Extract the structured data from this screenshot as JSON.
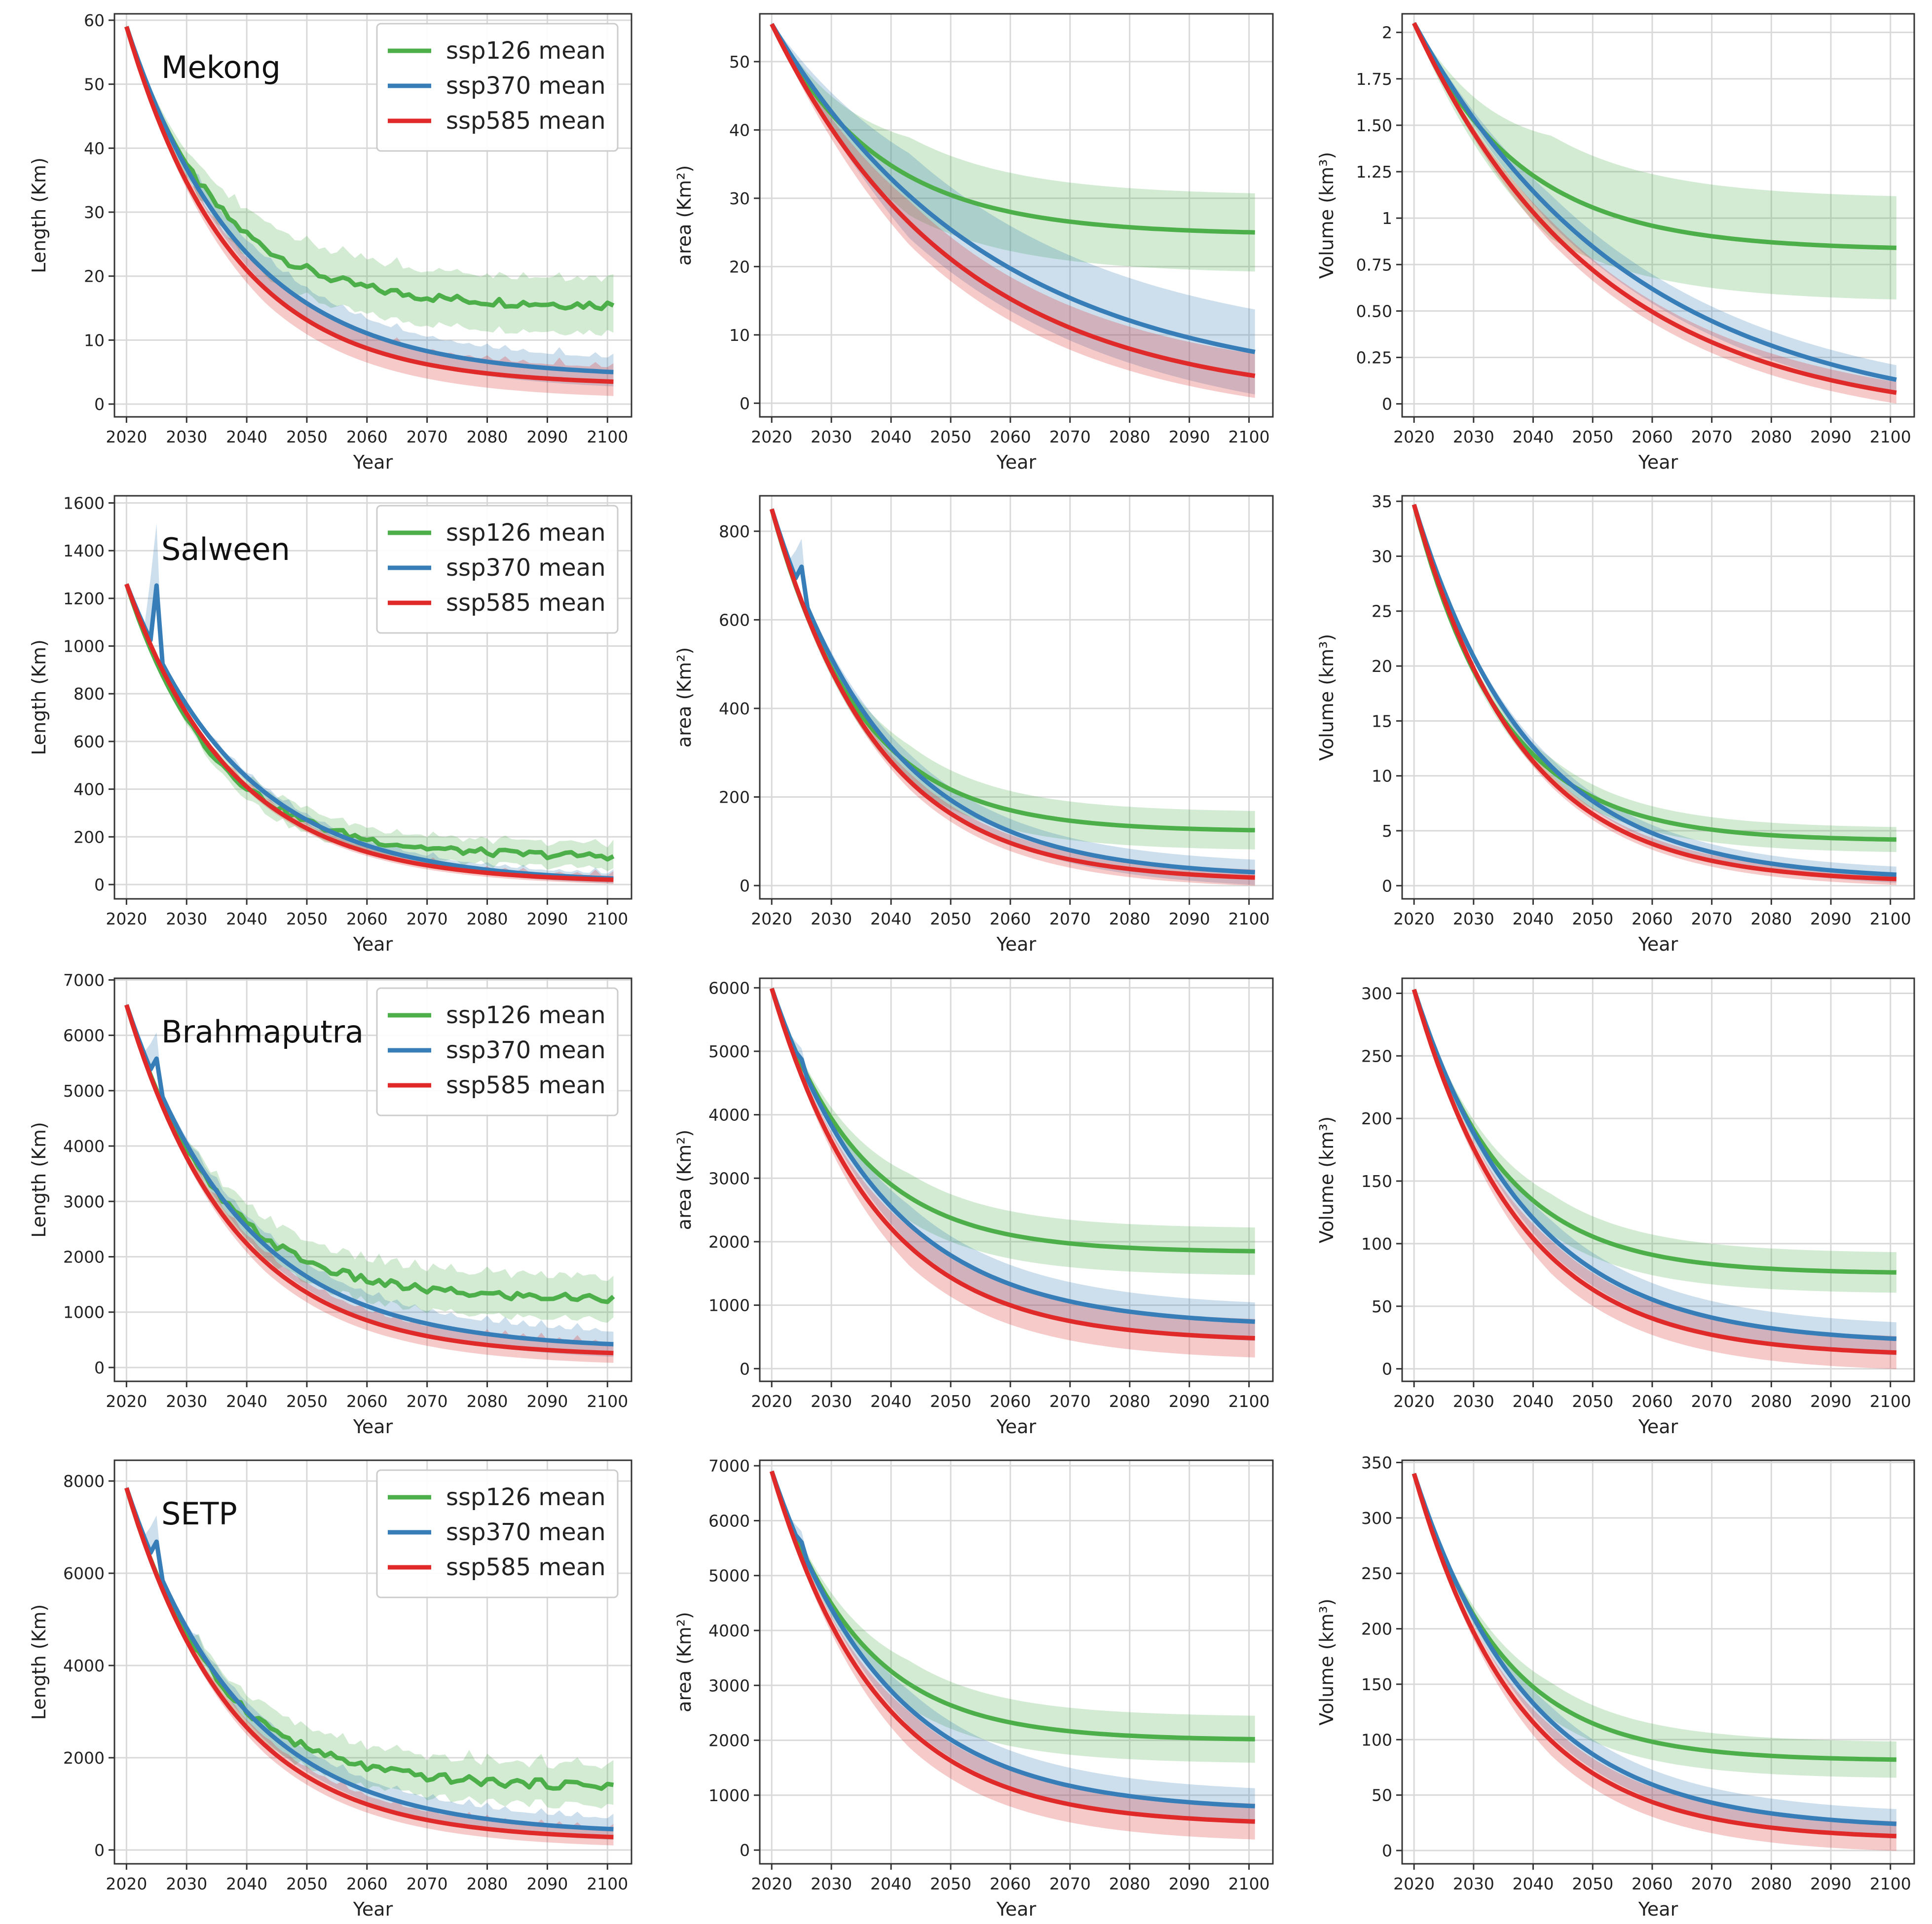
{
  "chart_data": {
    "type": "line",
    "layout": "4 rows x 3 columns of subplots (rows = basins, columns = length, area, volume)",
    "xlabel": "Year",
    "xlim": [
      2018,
      2104
    ],
    "xticks": [
      2020,
      2030,
      2040,
      2050,
      2060,
      2070,
      2080,
      2090,
      2100
    ],
    "legend": {
      "location": "top-right of left-column panels",
      "entries": [
        {
          "label": "ssp126 mean",
          "color": "#4daf4a"
        },
        {
          "label": "ssp370 mean",
          "color": "#377eb8"
        },
        {
          "label": "ssp585 mean",
          "color": "#e02a2a"
        }
      ]
    },
    "panels": [
      {
        "basin": "Mekong",
        "quantity": "length",
        "ylabel": "Length (Km)",
        "ylim": [
          -2,
          61
        ],
        "yticks": [
          0,
          10,
          20,
          30,
          40,
          50,
          60
        ],
        "start": 59,
        "spike": 0,
        "series": [
          {
            "name": "ssp126 mean",
            "end": 15.5,
            "band_end": 4
          },
          {
            "name": "ssp370 mean",
            "end": 5,
            "band_end": 2
          },
          {
            "name": "ssp585 mean",
            "end": 3.5,
            "band_end": 2
          }
        ]
      },
      {
        "basin": "Mekong",
        "quantity": "area",
        "ylabel": "area (Km²)",
        "ylim": [
          -2,
          57
        ],
        "yticks": [
          0,
          10,
          20,
          30,
          40,
          50
        ],
        "start": 55.5,
        "spike": 0,
        "series": [
          {
            "name": "ssp126 mean",
            "end": 25,
            "band_end": 5.5
          },
          {
            "name": "ssp370 mean",
            "end": 7.5,
            "band_end": 6
          },
          {
            "name": "ssp585 mean",
            "end": 4,
            "band_end": 3
          }
        ]
      },
      {
        "basin": "Mekong",
        "quantity": "volume",
        "ylabel": "Volume (km³)",
        "ylim": [
          -0.07,
          2.1
        ],
        "yticks": [
          0.0,
          0.25,
          0.5,
          0.75,
          1.0,
          1.25,
          1.5,
          1.75,
          2.0
        ],
        "start": 2.05,
        "spike": 0,
        "series": [
          {
            "name": "ssp126 mean",
            "end": 0.84,
            "band_end": 0.27
          },
          {
            "name": "ssp370 mean",
            "end": 0.13,
            "band_end": 0.07
          },
          {
            "name": "ssp585 mean",
            "end": 0.06,
            "band_end": 0.05
          }
        ]
      },
      {
        "basin": "Salween",
        "quantity": "length",
        "ylabel": "Length (Km)",
        "ylim": [
          -60,
          1630
        ],
        "yticks": [
          0,
          200,
          400,
          600,
          800,
          1000,
          1200,
          1400,
          1600
        ],
        "start": 1260,
        "spike": 280,
        "series": [
          {
            "name": "ssp126 mean",
            "end": 120,
            "band_end": 45
          },
          {
            "name": "ssp370 mean",
            "end": 25,
            "band_end": 15
          },
          {
            "name": "ssp585 mean",
            "end": 20,
            "band_end": 12
          }
        ]
      },
      {
        "basin": "Salween",
        "quantity": "area",
        "ylabel": "area (Km²)",
        "ylim": [
          -30,
          880
        ],
        "yticks": [
          0,
          200,
          400,
          600,
          800
        ],
        "start": 850,
        "spike": 60,
        "series": [
          {
            "name": "ssp126 mean",
            "end": 125,
            "band_end": 40
          },
          {
            "name": "ssp370 mean",
            "end": 30,
            "band_end": 25
          },
          {
            "name": "ssp585 mean",
            "end": 18,
            "band_end": 15
          }
        ]
      },
      {
        "basin": "Salween",
        "quantity": "volume",
        "ylabel": "Volume (km³)",
        "ylim": [
          -1.2,
          35.5
        ],
        "yticks": [
          0,
          5,
          10,
          15,
          20,
          25,
          30,
          35
        ],
        "start": 34.7,
        "spike": 0,
        "series": [
          {
            "name": "ssp126 mean",
            "end": 4.2,
            "band_end": 1.0
          },
          {
            "name": "ssp370 mean",
            "end": 1.0,
            "band_end": 0.6
          },
          {
            "name": "ssp585 mean",
            "end": 0.6,
            "band_end": 0.4
          }
        ]
      },
      {
        "basin": "Brahmaputra",
        "quantity": "length",
        "ylabel": "Length (Km)",
        "ylim": [
          -250,
          7030
        ],
        "yticks": [
          0,
          1000,
          2000,
          3000,
          4000,
          5000,
          6000,
          7000
        ],
        "start": 6550,
        "spike": 450,
        "series": [
          {
            "name": "ssp126 mean",
            "end": 1250,
            "band_end": 350
          },
          {
            "name": "ssp370 mean",
            "end": 420,
            "band_end": 200
          },
          {
            "name": "ssp585 mean",
            "end": 260,
            "band_end": 150
          }
        ]
      },
      {
        "basin": "Brahmaputra",
        "quantity": "area",
        "ylabel": "area (Km²)",
        "ylim": [
          -200,
          6150
        ],
        "yticks": [
          0,
          1000,
          2000,
          3000,
          4000,
          5000,
          6000
        ],
        "start": 5990,
        "spike": 100,
        "series": [
          {
            "name": "ssp126 mean",
            "end": 1850,
            "band_end": 350
          },
          {
            "name": "ssp370 mean",
            "end": 740,
            "band_end": 280
          },
          {
            "name": "ssp585 mean",
            "end": 480,
            "band_end": 280
          }
        ]
      },
      {
        "basin": "Brahmaputra",
        "quantity": "volume",
        "ylabel": "Volume (km³)",
        "ylim": [
          -10,
          312
        ],
        "yticks": [
          0,
          50,
          100,
          150,
          200,
          250,
          300
        ],
        "start": 303,
        "spike": 0,
        "series": [
          {
            "name": "ssp126 mean",
            "end": 77,
            "band_end": 15
          },
          {
            "name": "ssp370 mean",
            "end": 24,
            "band_end": 12
          },
          {
            "name": "ssp585 mean",
            "end": 13,
            "band_end": 12
          }
        ]
      },
      {
        "basin": "SETP",
        "quantity": "length",
        "ylabel": "Length (Km)",
        "ylim": [
          -300,
          8450
        ],
        "yticks": [
          0,
          2000,
          4000,
          6000,
          8000
        ],
        "start": 7850,
        "spike": 550,
        "series": [
          {
            "name": "ssp126 mean",
            "end": 1400,
            "band_end": 400
          },
          {
            "name": "ssp370 mean",
            "end": 450,
            "band_end": 200
          },
          {
            "name": "ssp585 mean",
            "end": 280,
            "band_end": 150
          }
        ]
      },
      {
        "basin": "SETP",
        "quantity": "area",
        "ylabel": "area (Km²)",
        "ylim": [
          -250,
          7100
        ],
        "yticks": [
          0,
          1000,
          2000,
          3000,
          4000,
          5000,
          6000,
          7000
        ],
        "start": 6900,
        "spike": 120,
        "series": [
          {
            "name": "ssp126 mean",
            "end": 2020,
            "band_end": 400
          },
          {
            "name": "ssp370 mean",
            "end": 800,
            "band_end": 300
          },
          {
            "name": "ssp585 mean",
            "end": 520,
            "band_end": 300
          }
        ]
      },
      {
        "basin": "SETP",
        "quantity": "volume",
        "ylabel": "Volume (km³)",
        "ylim": [
          -12,
          352
        ],
        "yticks": [
          0,
          50,
          100,
          150,
          200,
          250,
          300,
          350
        ],
        "start": 340,
        "spike": 0,
        "series": [
          {
            "name": "ssp126 mean",
            "end": 82,
            "band_end": 15
          },
          {
            "name": "ssp370 mean",
            "end": 24,
            "band_end": 12
          },
          {
            "name": "ssp585 mean",
            "end": 13,
            "band_end": 12
          }
        ]
      }
    ]
  }
}
